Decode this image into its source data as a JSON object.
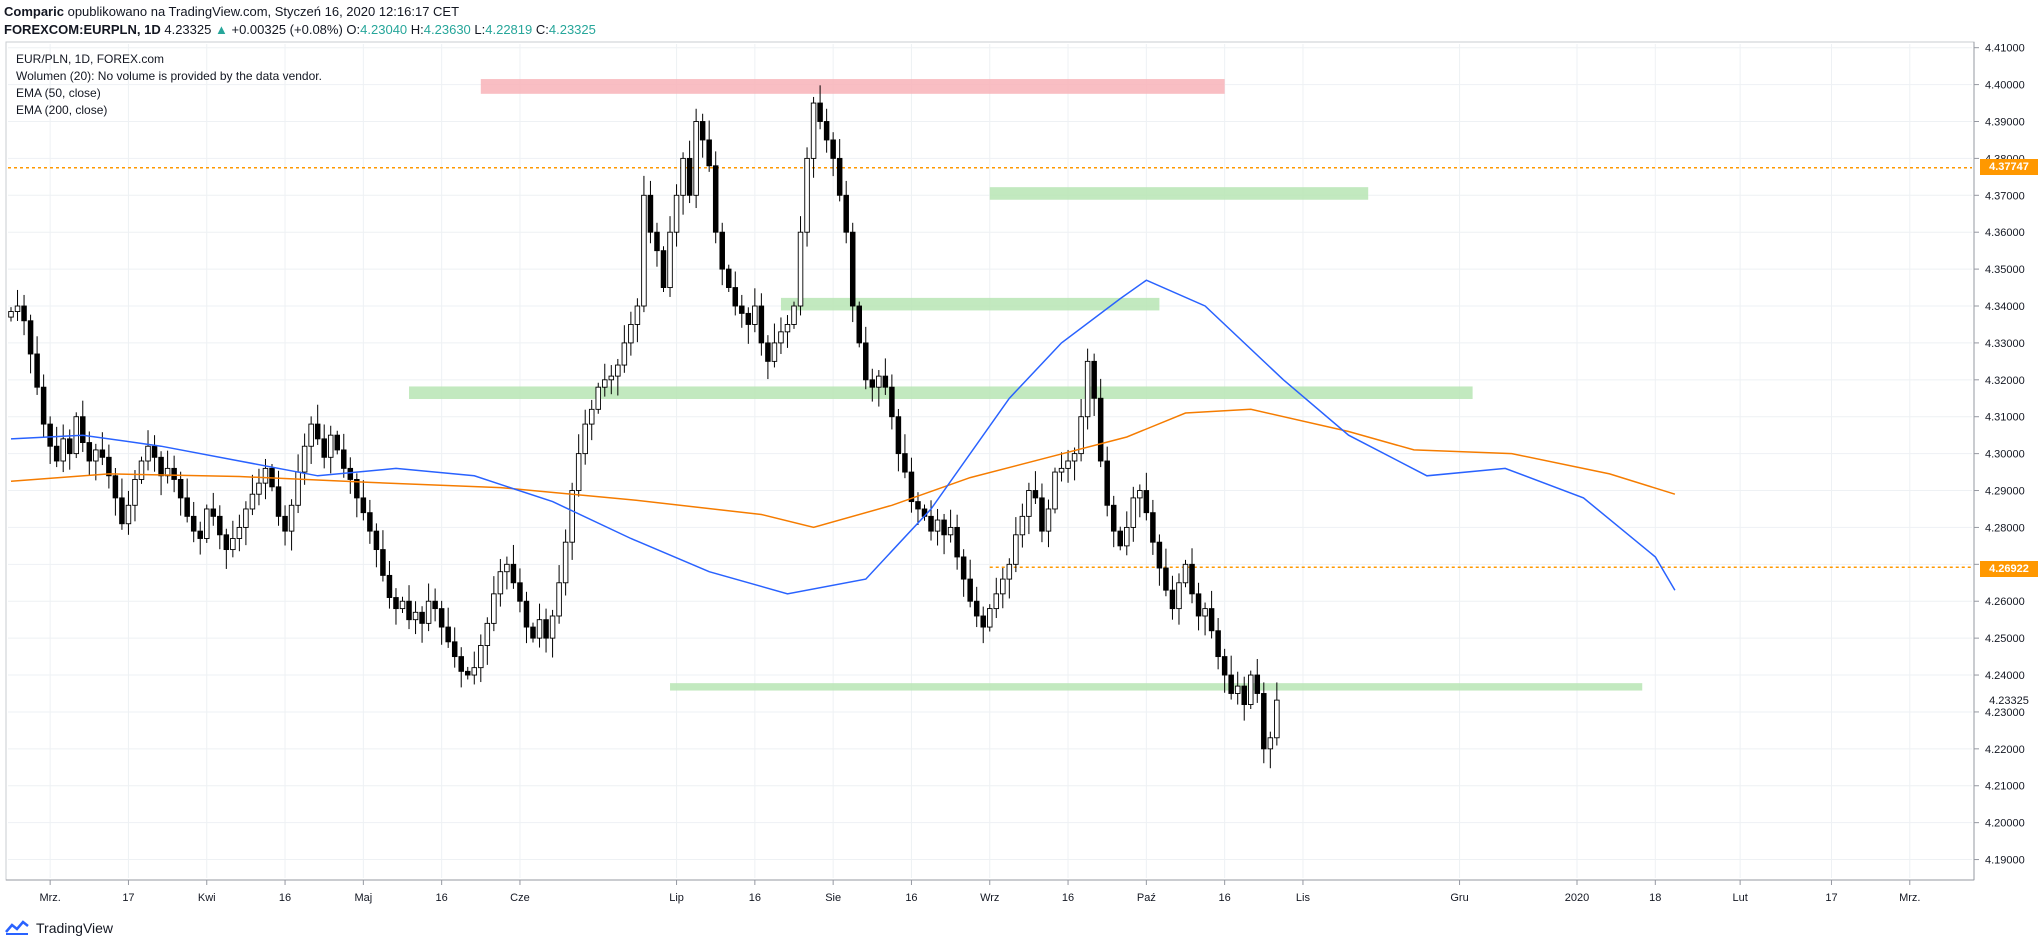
{
  "header": {
    "author": "Comparic",
    "published_text": "opublikowano na TradingView.com, Styczeń 16, 2020 12:16:17 CET",
    "symbol": "FOREXCOM:EURPLN, 1D",
    "last": "4.23325",
    "change_arrow": "▲",
    "change": "+0.00325 (+0.08%)",
    "open_label": "O:",
    "open": "4.23040",
    "high_label": "H:",
    "high": "4.23630",
    "low_label": "L:",
    "low": "4.22819",
    "close_label": "C:",
    "close": "4.23325"
  },
  "legend": {
    "title": "EUR/PLN, 1D, FOREX.com",
    "volume": "Wolumen (20): No volume is provided by the data vendor.",
    "ema50": "EMA (50, close)",
    "ema200": "EMA (200, close)"
  },
  "footer": {
    "brand": "TradingView"
  },
  "colors": {
    "up_candle": "#ffffff",
    "down_candle": "#000000",
    "ema50": "#2962ff",
    "ema200": "#f57c00",
    "resistance_zone": "#f8b3b8",
    "support_zone": "#b7e5b4",
    "price_line": "#ff9800",
    "grid": "#eef1f4"
  },
  "price_tags": {
    "upper": "4.37747",
    "lower": "4.26922",
    "current": "4.23325"
  },
  "chart_data": {
    "type": "candlestick",
    "symbol": "EUR/PLN",
    "timeframe": "1D",
    "ylim": [
      4.185,
      4.411
    ],
    "y_ticks": [
      "4.41000",
      "4.40000",
      "4.39000",
      "4.38000",
      "4.37000",
      "4.36000",
      "4.35000",
      "4.34000",
      "4.33000",
      "4.32000",
      "4.31000",
      "4.30000",
      "4.29000",
      "4.28000",
      "4.27000",
      "4.26000",
      "4.25000",
      "4.24000",
      "4.23000",
      "4.22000",
      "4.21000",
      "4.20000",
      "4.19000"
    ],
    "x_ticks": [
      "Mrz.",
      "17",
      "Kwi",
      "16",
      "Maj",
      "16",
      "Cze",
      "Lip",
      "16",
      "Sie",
      "16",
      "Wrz",
      "16",
      "Paź",
      "16",
      "Lis",
      "Gru",
      "2020",
      "18",
      "Lut",
      "17",
      "Mrz."
    ],
    "x_tick_index": [
      6,
      18,
      30,
      42,
      54,
      66,
      78,
      102,
      114,
      126,
      138,
      150,
      162,
      174,
      186,
      198,
      222,
      240,
      252,
      265,
      279,
      291
    ],
    "horizontal_lines": [
      4.37747,
      4.26922
    ],
    "zones": [
      {
        "kind": "resistance",
        "from": 72,
        "to": 186,
        "low": 4.3975,
        "high": 4.4015
      },
      {
        "kind": "support",
        "from": 150,
        "to": 208,
        "low": 4.3688,
        "high": 4.3722
      },
      {
        "kind": "support",
        "from": 118,
        "to": 176,
        "low": 4.3388,
        "high": 4.3422
      },
      {
        "kind": "support",
        "from": 61,
        "to": 224,
        "low": 4.3148,
        "high": 4.3182
      },
      {
        "kind": "support",
        "from": 101,
        "to": 250,
        "low": 4.2358,
        "high": 4.2378
      }
    ],
    "closes": [
      4.3385,
      4.34,
      4.336,
      4.327,
      4.318,
      4.308,
      4.302,
      4.298,
      4.304,
      4.3,
      4.31,
      4.303,
      4.298,
      4.301,
      4.299,
      4.294,
      4.288,
      4.281,
      4.286,
      4.293,
      4.298,
      4.302,
      4.299,
      4.294,
      4.296,
      4.293,
      4.288,
      4.283,
      4.279,
      4.277,
      4.285,
      4.283,
      4.278,
      4.274,
      4.277,
      4.28,
      4.285,
      4.289,
      4.292,
      4.296,
      4.291,
      4.283,
      4.279,
      4.286,
      4.295,
      4.302,
      4.308,
      4.304,
      4.299,
      4.305,
      4.301,
      4.296,
      4.293,
      4.288,
      4.284,
      4.279,
      4.274,
      4.267,
      4.261,
      4.258,
      4.26,
      4.255,
      4.257,
      4.254,
      4.26,
      4.258,
      4.253,
      4.249,
      4.245,
      4.241,
      4.24,
      4.242,
      4.248,
      4.254,
      4.262,
      4.268,
      4.27,
      4.265,
      4.26,
      4.253,
      4.25,
      4.255,
      4.25,
      4.256,
      4.265,
      4.276,
      4.29,
      4.3,
      4.308,
      4.312,
      4.318,
      4.32,
      4.321,
      4.324,
      4.33,
      4.335,
      4.34,
      4.37,
      4.36,
      4.355,
      4.345,
      4.36,
      4.37,
      4.38,
      4.37,
      4.39,
      4.385,
      4.378,
      4.36,
      4.35,
      4.345,
      4.34,
      4.338,
      4.335,
      4.34,
      4.33,
      4.325,
      4.33,
      4.333,
      4.335,
      4.34,
      4.36,
      4.38,
      4.395,
      4.39,
      4.385,
      4.38,
      4.37,
      4.36,
      4.34,
      4.33,
      4.32,
      4.318,
      4.321,
      4.318,
      4.31,
      4.3,
      4.295,
      4.287,
      4.285,
      4.283,
      4.279,
      4.282,
      4.278,
      4.28,
      4.272,
      4.266,
      4.26,
      4.256,
      4.253,
      4.258,
      4.262,
      4.266,
      4.27,
      4.278,
      4.283,
      4.29,
      4.288,
      4.279,
      4.285,
      4.295,
      4.296,
      4.298,
      4.3,
      4.31,
      4.325,
      4.315,
      4.298,
      4.286,
      4.279,
      4.275,
      4.28,
      4.288,
      4.29,
      4.284,
      4.276,
      4.269,
      4.263,
      4.258,
      4.265,
      4.27,
      4.262,
      4.256,
      4.258,
      4.252,
      4.245,
      4.24,
      4.235,
      4.237,
      4.232,
      4.24,
      4.235,
      4.22,
      4.223,
      4.2332
    ],
    "ema50_line": {
      "x": [
        0,
        11,
        23,
        35,
        47,
        59,
        71,
        83,
        95,
        107,
        119,
        131,
        141,
        153,
        161,
        170,
        174,
        183,
        195,
        205,
        217,
        229,
        241,
        252,
        255
      ],
      "y": [
        4.304,
        4.305,
        4.302,
        4.298,
        4.294,
        4.296,
        4.294,
        4.287,
        4.277,
        4.268,
        4.262,
        4.266,
        4.285,
        4.315,
        4.33,
        4.342,
        4.347,
        4.34,
        4.32,
        4.305,
        4.294,
        4.296,
        4.288,
        4.272,
        4.263
      ]
    },
    "ema200_line": {
      "x": [
        0,
        15,
        35,
        55,
        75,
        95,
        115,
        123,
        135,
        147,
        159,
        171,
        180,
        190,
        205,
        215,
        230,
        245,
        255
      ],
      "y": [
        4.2925,
        4.2945,
        4.2938,
        4.2922,
        4.2908,
        4.2875,
        4.2835,
        4.28,
        4.286,
        4.2935,
        4.299,
        4.3045,
        4.311,
        4.312,
        4.306,
        4.301,
        4.3,
        4.2945,
        4.289
      ]
    }
  }
}
